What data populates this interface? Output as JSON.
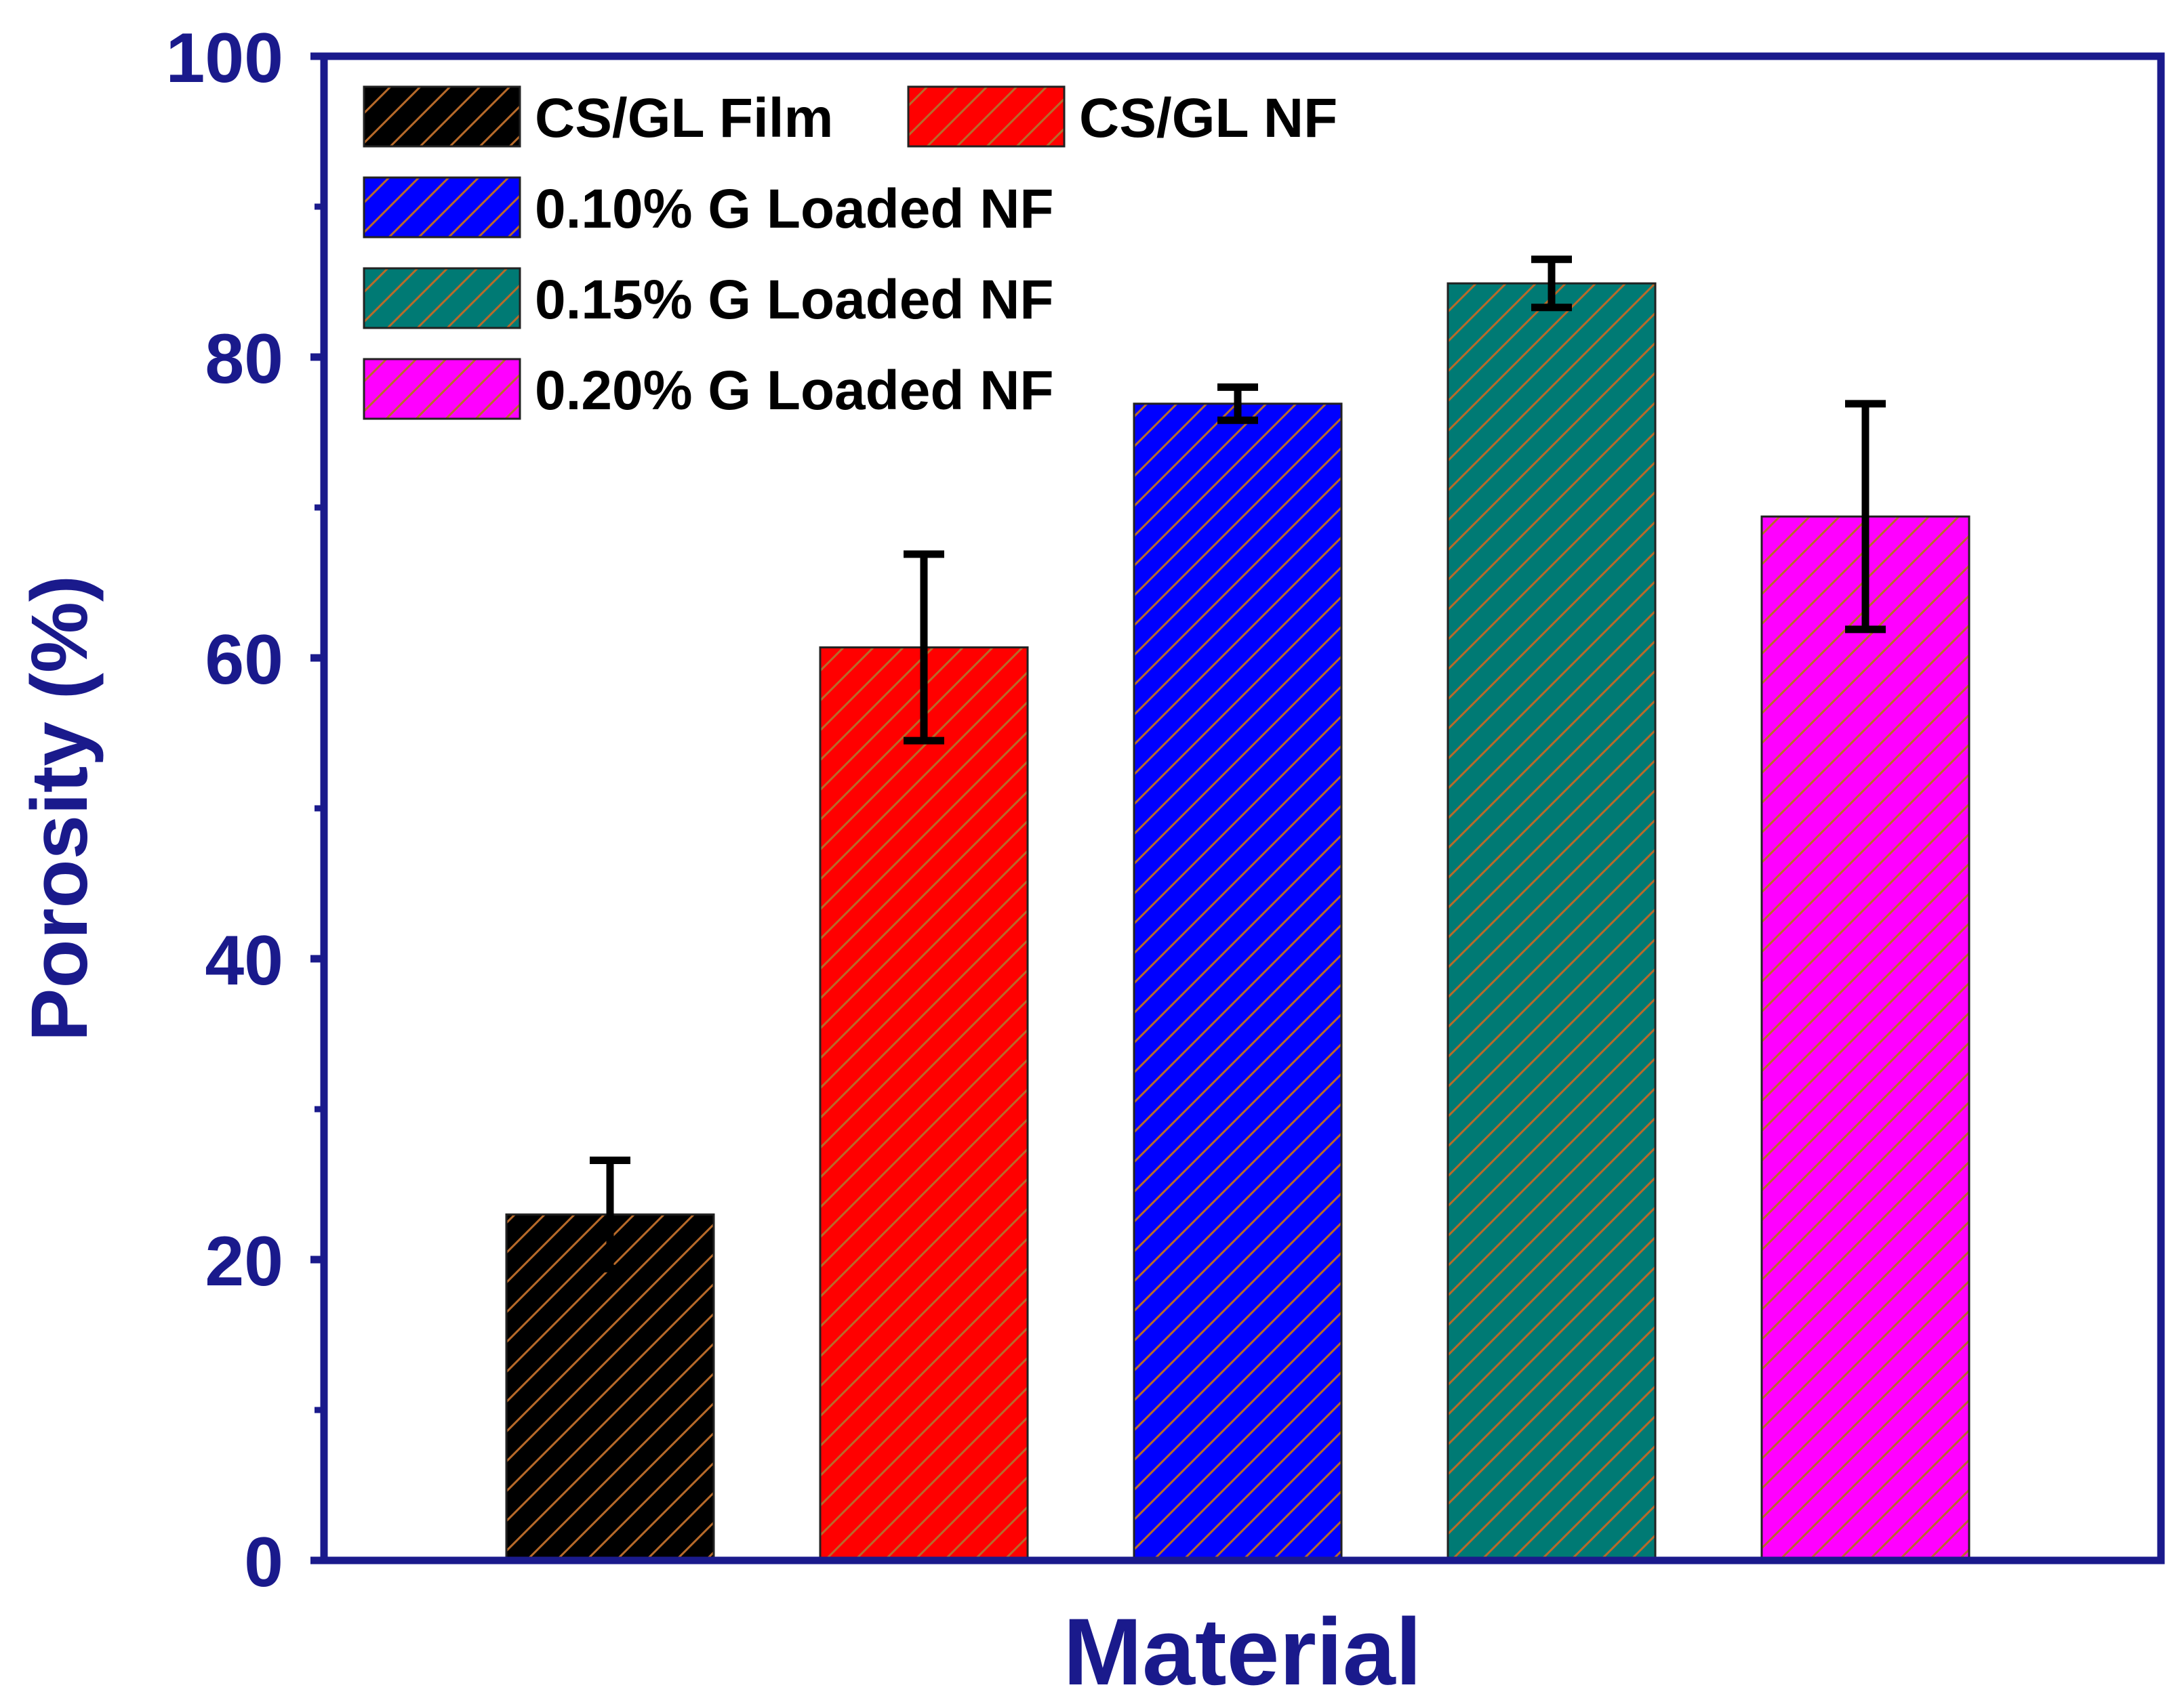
{
  "chart_data": {
    "type": "bar",
    "title": "",
    "xlabel": "Material",
    "ylabel": "Porosity (%)",
    "ylim": [
      0,
      100
    ],
    "yticks": [
      0,
      20,
      40,
      60,
      80,
      100
    ],
    "yminor_ticks": [
      10,
      30,
      50,
      70,
      90
    ],
    "grid": false,
    "legend_position": "top-left",
    "axis_color": "#1a1a8c",
    "hatch_color": "#b86a2a",
    "categories": [
      "CS/GL Film",
      "CS/GL NF",
      "0.10% G Loaded NF",
      "0.15% G Loaded NF",
      "0.20% G Loaded NF"
    ],
    "values": [
      23,
      60.7,
      76.9,
      84.9,
      69.4
    ],
    "errors": [
      3.6,
      6.2,
      1.1,
      1.6,
      7.5
    ],
    "colors": [
      "#000000",
      "#ff0000",
      "#0000ff",
      "#007a74",
      "#ff00ff"
    ]
  }
}
